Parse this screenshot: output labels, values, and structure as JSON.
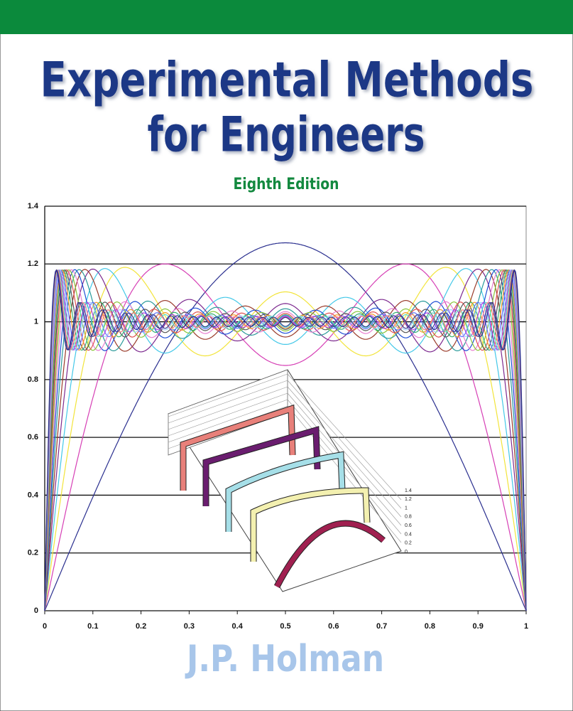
{
  "cover": {
    "title_line1": "Experimental Methods",
    "title_line2": "for Engineers",
    "edition": "Eighth Edition",
    "author": "J.P. Holman",
    "plot": {
      "xlim": [
        0,
        1
      ],
      "ylim": [
        0,
        1.4
      ],
      "xticks": [
        0,
        0.1,
        0.2,
        0.3,
        0.4,
        0.5,
        0.6,
        0.7,
        0.8,
        0.9,
        1
      ],
      "yticks": [
        0,
        0.2,
        0.4,
        0.6,
        0.8,
        1,
        1.2,
        1.4
      ],
      "grid": true
    },
    "inset": {
      "ylim": [
        0,
        1.4
      ],
      "yticks": [
        0,
        0.2,
        0.4,
        0.6,
        0.8,
        1,
        1.2,
        1.4
      ]
    }
  }
}
